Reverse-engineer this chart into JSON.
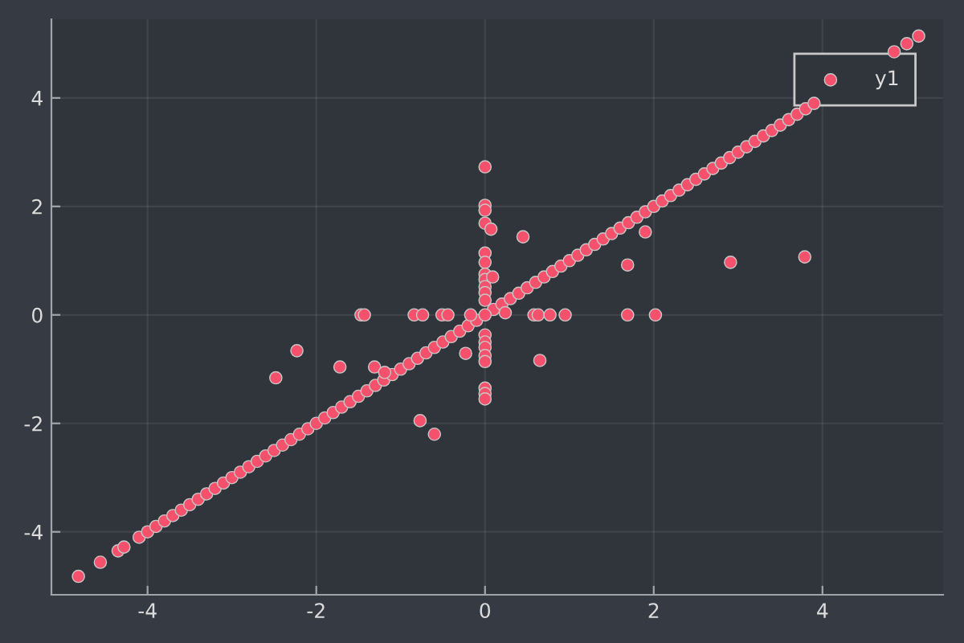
{
  "chart_data": {
    "type": "scatter",
    "series": [
      {
        "name": "y1",
        "color": "#f5516c",
        "x": [
          -4.82,
          -4.56,
          -4.35,
          -4.28,
          -4.1,
          -4.0,
          -3.9,
          -3.8,
          -3.7,
          -3.6,
          -3.5,
          -3.4,
          -3.3,
          -3.2,
          -3.1,
          -3.0,
          -2.9,
          -2.8,
          -2.7,
          -2.6,
          -2.5,
          -2.4,
          -2.3,
          -2.2,
          -2.1,
          -2.0,
          -1.9,
          -1.8,
          -1.7,
          -1.6,
          -1.5,
          -1.4,
          -1.3,
          -1.2,
          -1.1,
          -1.0,
          -0.9,
          -0.8,
          -0.7,
          -0.6,
          -0.5,
          -0.4,
          -0.3,
          -0.2,
          -0.1,
          0.1,
          0.2,
          0.3,
          0.4,
          0.5,
          0.6,
          0.7,
          0.8,
          0.9,
          1.0,
          1.1,
          1.2,
          1.3,
          1.4,
          1.5,
          1.6,
          1.7,
          1.8,
          1.9,
          2.0,
          2.1,
          2.2,
          2.3,
          2.4,
          2.5,
          2.6,
          2.7,
          2.8,
          2.9,
          3.0,
          3.1,
          3.2,
          3.3,
          3.4,
          3.5,
          3.6,
          3.7,
          3.8,
          3.9,
          4.85,
          5.0,
          5.14,
          0,
          0,
          0,
          0,
          0.07,
          0.45,
          0,
          0,
          0,
          0,
          0.09,
          0,
          0,
          0,
          -1.47,
          -1.43,
          -0.84,
          -0.74,
          -0.51,
          -0.44,
          -0.17,
          0,
          0.58,
          0.63,
          0.77,
          0.95,
          1.69,
          2.02,
          1.9,
          1.69,
          0.24,
          0,
          0,
          0,
          0,
          0,
          -0.23,
          0.65,
          0,
          0,
          0,
          -2.23,
          -2.48,
          -1.72,
          -1.31,
          -1.19,
          -0.77,
          -0.6,
          2.91,
          3.79
        ],
        "values": [
          -4.82,
          -4.56,
          -4.35,
          -4.28,
          -4.1,
          -4.0,
          -3.9,
          -3.8,
          -3.7,
          -3.6,
          -3.5,
          -3.4,
          -3.3,
          -3.2,
          -3.1,
          -3.0,
          -2.9,
          -2.8,
          -2.7,
          -2.6,
          -2.5,
          -2.4,
          -2.3,
          -2.2,
          -2.1,
          -2.0,
          -1.9,
          -1.8,
          -1.7,
          -1.6,
          -1.5,
          -1.4,
          -1.3,
          -1.2,
          -1.1,
          -1.0,
          -0.9,
          -0.8,
          -0.7,
          -0.6,
          -0.5,
          -0.4,
          -0.3,
          -0.2,
          -0.1,
          0.1,
          0.2,
          0.3,
          0.4,
          0.5,
          0.6,
          0.7,
          0.8,
          0.9,
          1.0,
          1.1,
          1.2,
          1.3,
          1.4,
          1.5,
          1.6,
          1.7,
          1.8,
          1.9,
          2.0,
          2.1,
          2.2,
          2.3,
          2.4,
          2.5,
          2.6,
          2.7,
          2.8,
          2.9,
          3.0,
          3.1,
          3.2,
          3.3,
          3.4,
          3.5,
          3.6,
          3.7,
          3.8,
          3.9,
          4.85,
          5.0,
          5.14,
          2.73,
          2.02,
          1.93,
          1.69,
          1.58,
          1.44,
          1.14,
          0.97,
          0.75,
          0.65,
          0.7,
          0.52,
          0.41,
          0.27,
          0,
          0,
          0,
          0,
          0,
          0,
          0,
          0,
          0,
          0,
          0,
          0,
          0,
          0,
          1.53,
          0.92,
          0.04,
          -0.37,
          -0.5,
          -0.6,
          -0.75,
          -0.86,
          -0.71,
          -0.84,
          -1.35,
          -1.45,
          -1.55,
          -0.66,
          -1.16,
          -0.96,
          -0.96,
          -1.06,
          -1.95,
          -2.2,
          0.97,
          1.07
        ]
      }
    ],
    "xlim": [
      -5.14,
      5.43
    ],
    "ylim": [
      -5.16,
      5.45
    ],
    "xticks": [
      -4,
      -2,
      0,
      2,
      4
    ],
    "yticks": [
      -4,
      -2,
      0,
      2,
      4
    ],
    "grid": true,
    "legend": "top right",
    "marker": "circle"
  }
}
